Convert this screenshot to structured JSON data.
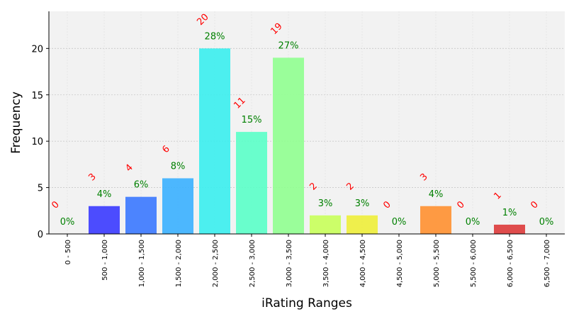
{
  "chart_data": {
    "type": "bar",
    "title": "",
    "xlabel": "iRating Ranges",
    "ylabel": "Frequency",
    "ylim": [
      0,
      24
    ],
    "yticks": [
      0,
      5,
      10,
      15,
      20
    ],
    "grid": true,
    "categories": [
      "0 - 500",
      "500 - 1,000",
      "1,000 - 1,500",
      "1,500 - 2,000",
      "2,000 - 2,500",
      "2,500 - 3,000",
      "3,000 - 3,500",
      "3,500 - 4,000",
      "4,000 - 4,500",
      "4,500 - 5,000",
      "5,000 - 5,500",
      "5,500 - 6,000",
      "6,000 - 6,500",
      "6,500 - 7,000"
    ],
    "values": [
      0,
      3,
      4,
      6,
      20,
      11,
      19,
      2,
      2,
      0,
      3,
      0,
      1,
      0
    ],
    "count_labels": [
      "0",
      "3",
      "4",
      "6",
      "20",
      "11",
      "19",
      "2",
      "2",
      "0",
      "3",
      "0",
      "1",
      "0"
    ],
    "percent_labels": [
      "0%",
      "4%",
      "6%",
      "8%",
      "28%",
      "15%",
      "27%",
      "3%",
      "3%",
      "0%",
      "4%",
      "0%",
      "1%",
      "0%"
    ],
    "colors": [
      "#3a00ff",
      "#3a3aff",
      "#3a78ff",
      "#3ab0ff",
      "#3aeeee",
      "#5affc8",
      "#90ff90",
      "#c8ff5a",
      "#eeee3a",
      "#ffc83a",
      "#ff9030",
      "#ff5a3a",
      "#dd3a3a",
      "#c83a3a"
    ]
  }
}
